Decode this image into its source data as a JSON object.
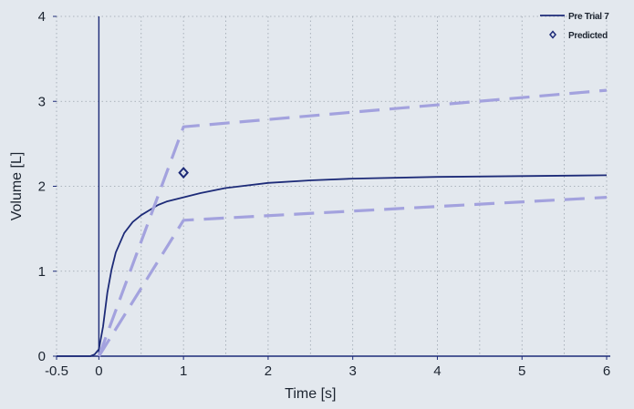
{
  "chart_data": {
    "type": "line",
    "title": "",
    "xlabel": "Time [s]",
    "ylabel": "Volume [L]",
    "xlim": [
      -0.5,
      6
    ],
    "ylim": [
      0,
      4
    ],
    "x_ticks": [
      -0.5,
      0,
      1,
      2,
      3,
      4,
      5,
      6
    ],
    "y_ticks": [
      0,
      1,
      2,
      3,
      4
    ],
    "grid": true,
    "grid_style": "dotted",
    "legend_position": "top-right",
    "series": [
      {
        "name": "Pre Trial 7",
        "style": "solid",
        "color": "#1d2b78",
        "x": [
          -0.5,
          -0.1,
          -0.05,
          0,
          0.05,
          0.1,
          0.15,
          0.2,
          0.3,
          0.4,
          0.5,
          0.6,
          0.7,
          0.8,
          1.0,
          1.2,
          1.5,
          2.0,
          2.5,
          3.0,
          4.0,
          5.0,
          6.0
        ],
        "y": [
          0,
          0,
          0.02,
          0.08,
          0.35,
          0.75,
          1.02,
          1.22,
          1.45,
          1.58,
          1.66,
          1.72,
          1.78,
          1.82,
          1.87,
          1.92,
          1.98,
          2.04,
          2.07,
          2.09,
          2.11,
          2.12,
          2.13
        ]
      },
      {
        "name": "",
        "style": "dashed",
        "color": "#a3a2de",
        "x": [
          0,
          1,
          6
        ],
        "y": [
          0,
          2.7,
          3.13
        ]
      },
      {
        "name": "",
        "style": "dashed",
        "color": "#a3a2de",
        "x": [
          0,
          1,
          6
        ],
        "y": [
          0,
          1.6,
          1.87
        ]
      }
    ],
    "predicted": {
      "name": "Predicted",
      "color": "#1d2b78",
      "marker": "diamond",
      "x": 1.0,
      "y": 2.16
    }
  }
}
